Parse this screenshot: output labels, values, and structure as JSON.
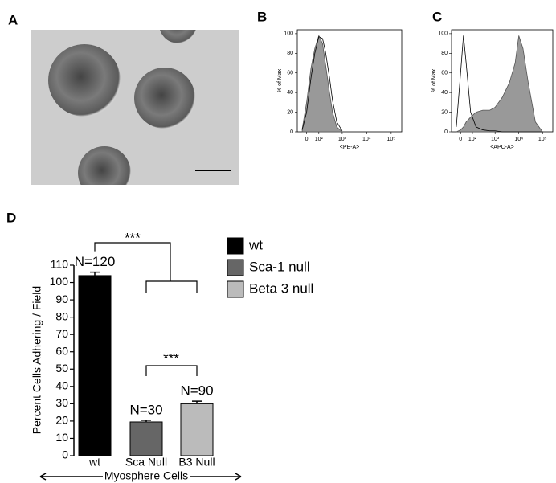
{
  "panel_labels": [
    "A",
    "B",
    "C",
    "D"
  ],
  "chart_data": [
    {
      "type": "area",
      "y_label": "% of Max",
      "x_label": "<PE-A>",
      "xscale": "biexponential",
      "xlim": [
        -70,
        270000
      ],
      "ylim": [
        0,
        104
      ],
      "yticks": [
        0,
        20,
        40,
        60,
        80,
        100
      ],
      "xticks": [
        0,
        {
          "value": 100,
          "label": "10²"
        },
        {
          "value": 1000,
          "label": "10³"
        },
        {
          "value": 10000,
          "label": "10⁴"
        },
        {
          "value": 100000,
          "label": "10⁵"
        }
      ],
      "x": [
        -30,
        0,
        30,
        60,
        100,
        150,
        200,
        300,
        400,
        600,
        1000
      ],
      "series": [
        {
          "filled": true,
          "color": "#999999",
          "values": [
            3,
            30,
            65,
            85,
            98,
            90,
            70,
            40,
            20,
            5,
            0
          ]
        },
        {
          "filled": false,
          "color": "#000000",
          "values": [
            2,
            20,
            55,
            80,
            97,
            95,
            82,
            55,
            32,
            10,
            1
          ]
        }
      ]
    },
    {
      "type": "area",
      "y_label": "% of Max",
      "x_label": "<APC-A>",
      "xscale": "biexponential",
      "xlim": [
        -70,
        270000
      ],
      "ylim": [
        0,
        104
      ],
      "yticks": [
        0,
        20,
        40,
        60,
        80,
        100
      ],
      "xticks": [
        0,
        {
          "value": 100,
          "label": "10²"
        },
        {
          "value": 1000,
          "label": "10³"
        },
        {
          "value": 10000,
          "label": "10⁴"
        },
        {
          "value": 100000,
          "label": "10⁵"
        }
      ],
      "x": [
        -30,
        0,
        20,
        40,
        80,
        150,
        300,
        600,
        1000,
        2000,
        4000,
        7000,
        10000,
        15000,
        25000,
        50000,
        100000
      ],
      "series": [
        {
          "filled": true,
          "color": "#999999",
          "values": [
            0,
            2,
            5,
            10,
            15,
            20,
            22,
            22,
            25,
            35,
            50,
            70,
            98,
            85,
            50,
            10,
            0
          ]
        },
        {
          "filled": false,
          "color": "#000000",
          "values": [
            5,
            60,
            98,
            70,
            20,
            5,
            2,
            1,
            1,
            0,
            0,
            0,
            0,
            0,
            0,
            0,
            0
          ]
        }
      ]
    },
    {
      "type": "bar",
      "y_label": "Percent Cells Adhering / Field",
      "x_label": "Myosphere Cells",
      "categories": [
        "wt",
        "Sca Null",
        "B3 Null"
      ],
      "values": [
        104,
        19.5,
        30
      ],
      "errors": [
        2,
        1,
        1.5
      ],
      "colors": [
        "#000000",
        "#666666",
        "#bbbbbb"
      ],
      "annotations": [
        "N=120",
        "N=30",
        "N=90"
      ],
      "significance": [
        "***",
        "***"
      ],
      "legend": [
        "wt",
        "Sca-1 null",
        "Beta 3 null"
      ],
      "ylim": [
        0,
        110
      ],
      "yticks": [
        0,
        10,
        20,
        30,
        40,
        50,
        60,
        70,
        80,
        90,
        100,
        110
      ]
    }
  ]
}
